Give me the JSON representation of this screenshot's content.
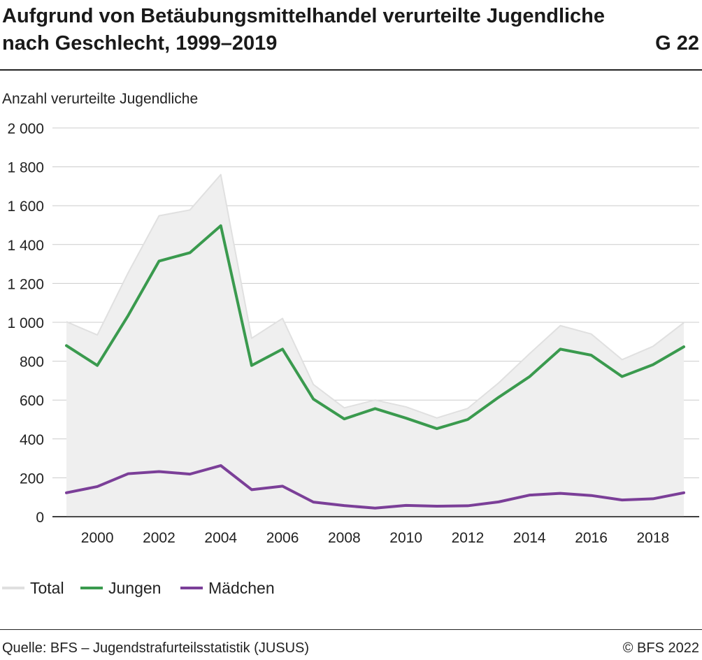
{
  "header": {
    "title": "Aufgrund von Betäubungsmittelhandel verurteilte Jugendliche nach Geschlecht, 1999–2019",
    "figure_number": "G 22"
  },
  "footer": {
    "source": "Quelle: BFS – Jugendstrafurteilsstatistik (JUSUS)",
    "copyright": "© BFS 2022"
  },
  "colors": {
    "total": "#e0e0e0",
    "total_fill": "#efefef",
    "jungen": "#3a9a4e",
    "maedchen": "#7b3f98",
    "grid": "#cccccc"
  },
  "chart_data": {
    "type": "line",
    "title": "Aufgrund von Betäubungsmittelhandel verurteilte Jugendliche nach Geschlecht, 1999–2019",
    "ylabel": "Anzahl verurteilte Jugendliche",
    "xlabel": "",
    "ylim": [
      0,
      2000
    ],
    "xlim": [
      1999,
      2019
    ],
    "y_ticks": [
      0,
      200,
      400,
      600,
      800,
      1000,
      1200,
      1400,
      1600,
      1800,
      2000
    ],
    "y_tick_labels": [
      "0",
      "200",
      "400",
      "600",
      "800",
      "1 000",
      "1 200",
      "1 400",
      "1 600",
      "1 800",
      "2 000"
    ],
    "x_ticks": [
      2000,
      2002,
      2004,
      2006,
      2008,
      2010,
      2012,
      2014,
      2016,
      2018
    ],
    "x_tick_labels": [
      "2000",
      "2002",
      "2004",
      "2006",
      "2008",
      "2010",
      "2012",
      "2014",
      "2016",
      "2018"
    ],
    "grid": true,
    "legend_position": "bottom-left",
    "x": [
      1999,
      2000,
      2001,
      2002,
      2003,
      2004,
      2005,
      2006,
      2007,
      2008,
      2009,
      2010,
      2011,
      2012,
      2013,
      2014,
      2015,
      2016,
      2017,
      2018,
      2019
    ],
    "series": [
      {
        "name": "Total",
        "style": "area",
        "values": [
          1003,
          935,
          1255,
          1548,
          1578,
          1760,
          918,
          1020,
          680,
          560,
          600,
          565,
          508,
          557,
          688,
          838,
          983,
          940,
          808,
          876,
          998
        ]
      },
      {
        "name": "Jungen",
        "style": "line",
        "values": [
          880,
          778,
          1035,
          1315,
          1358,
          1497,
          778,
          862,
          605,
          503,
          556,
          507,
          453,
          500,
          614,
          720,
          862,
          831,
          721,
          782,
          874
        ]
      },
      {
        "name": "Mädchen",
        "style": "line",
        "values": [
          123,
          155,
          221,
          232,
          219,
          263,
          139,
          157,
          75,
          57,
          44,
          58,
          54,
          56,
          76,
          111,
          120,
          109,
          86,
          92,
          123
        ]
      }
    ]
  }
}
